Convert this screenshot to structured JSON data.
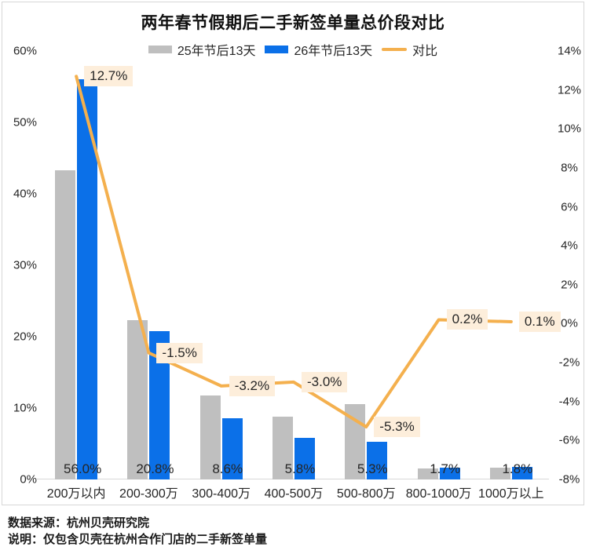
{
  "title": "两年春节假期后二手新签单量总价段对比",
  "chart_data": {
    "type": "bar+line",
    "title": "两年春节假期后二手新签单量总价段对比",
    "categories": [
      "200万以内",
      "200-300万",
      "300-400万",
      "400-500万",
      "500-800万",
      "800-1000万",
      "1000万以上"
    ],
    "series": [
      {
        "name": "25年节后13天",
        "type": "bar",
        "axis": "left",
        "color": "#bfbfbf",
        "values": [
          43.3,
          22.3,
          11.8,
          8.8,
          10.6,
          1.5,
          1.7
        ]
      },
      {
        "name": "26年节后13天",
        "type": "bar",
        "axis": "left",
        "color": "#0b70e8",
        "values": [
          56.0,
          20.8,
          8.6,
          5.8,
          5.3,
          1.7,
          1.8
        ],
        "data_labels": [
          "56.0%",
          "20.8%",
          "8.6%",
          "5.8%",
          "5.3%",
          "1.7%",
          "1.8%"
        ]
      },
      {
        "name": "对比",
        "type": "line",
        "axis": "right",
        "color": "#f4b04e",
        "values": [
          12.7,
          -1.5,
          -3.2,
          -3.0,
          -5.3,
          0.2,
          0.1
        ],
        "data_labels": [
          "12.7%",
          "-1.5%",
          "-3.2%",
          "-3.0%",
          "-5.3%",
          "0.2%",
          "0.1%"
        ],
        "label_bg": "#fdeedb"
      }
    ],
    "left_axis": {
      "min": 0,
      "max": 60,
      "step": 10,
      "ticks": [
        "0%",
        "10%",
        "20%",
        "30%",
        "40%",
        "50%",
        "60%"
      ]
    },
    "right_axis": {
      "min": -8,
      "max": 14,
      "step": 2,
      "ticks": [
        "-8%",
        "-6%",
        "-4%",
        "-2%",
        "0%",
        "2%",
        "4%",
        "6%",
        "8%",
        "10%",
        "12%",
        "14%"
      ]
    },
    "grid": false,
    "legend_position": "top"
  },
  "footer": {
    "source": "数据来源：杭州贝壳研究院",
    "note": "说明：仅包含贝壳在杭州合作门店的二手新签单量"
  }
}
